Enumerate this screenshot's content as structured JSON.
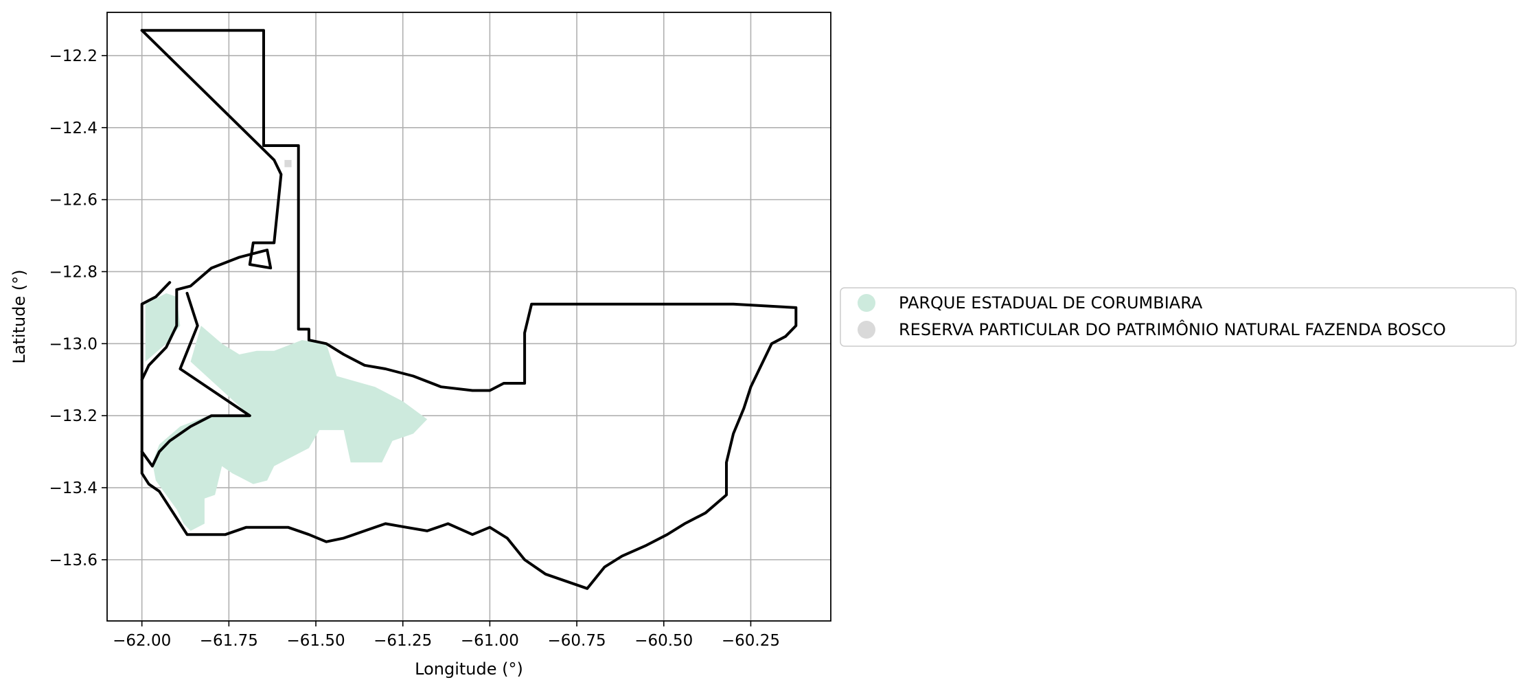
{
  "chart_data": {
    "type": "map",
    "xlabel": "Longitude (°)",
    "ylabel": "Latitude (°)",
    "xlim": [
      -62.1,
      -60.02
    ],
    "ylim": [
      -13.77,
      -12.08
    ],
    "xticks": [
      -62.0,
      -61.75,
      -61.5,
      -61.25,
      -61.0,
      -60.75,
      -60.5,
      -60.25
    ],
    "xtick_labels": [
      "−62.00",
      "−61.75",
      "−61.50",
      "−61.25",
      "−61.00",
      "−60.75",
      "−60.50",
      "−60.25"
    ],
    "yticks": [
      -12.2,
      -12.4,
      -12.6,
      -12.8,
      -13.0,
      -13.2,
      -13.4,
      -13.6
    ],
    "ytick_labels": [
      "−12.2",
      "−12.4",
      "−12.6",
      "−12.8",
      "−13.0",
      "−13.2",
      "−13.4",
      "−13.6"
    ],
    "grid": true,
    "legend_position": "outside-right",
    "legend": [
      {
        "label": "PARQUE ESTADUAL DE CORUMBIARA",
        "color": "#cdeadd"
      },
      {
        "label": "RESERVA PARTICULAR DO PATRIMÔNIO NATURAL FAZENDA BOSCO",
        "color": "#d9d9d9"
      }
    ],
    "areas": [
      {
        "name": "PARQUE ESTADUAL DE CORUMBIARA",
        "color": "#cdeadd",
        "polygons": [
          [
            [
              -61.99,
              -12.89
            ],
            [
              -61.93,
              -12.86
            ],
            [
              -61.9,
              -12.87
            ],
            [
              -61.89,
              -12.95
            ],
            [
              -61.93,
              -13.0
            ],
            [
              -61.99,
              -13.05
            ]
          ],
          [
            [
              -61.83,
              -12.95
            ],
            [
              -61.77,
              -13.0
            ],
            [
              -61.72,
              -13.03
            ],
            [
              -61.67,
              -13.02
            ],
            [
              -61.62,
              -13.02
            ],
            [
              -61.54,
              -12.99
            ],
            [
              -61.47,
              -13.0
            ],
            [
              -61.44,
              -13.09
            ],
            [
              -61.33,
              -13.12
            ],
            [
              -61.25,
              -13.16
            ],
            [
              -61.18,
              -13.21
            ],
            [
              -61.22,
              -13.25
            ],
            [
              -61.28,
              -13.27
            ],
            [
              -61.31,
              -13.33
            ],
            [
              -61.4,
              -13.33
            ],
            [
              -61.42,
              -13.24
            ],
            [
              -61.49,
              -13.24
            ],
            [
              -61.52,
              -13.29
            ],
            [
              -61.58,
              -13.32
            ],
            [
              -61.62,
              -13.34
            ],
            [
              -61.64,
              -13.38
            ],
            [
              -61.68,
              -13.39
            ],
            [
              -61.72,
              -13.37
            ],
            [
              -61.74,
              -13.36
            ],
            [
              -61.77,
              -13.34
            ],
            [
              -61.79,
              -13.42
            ],
            [
              -61.82,
              -13.43
            ],
            [
              -61.82,
              -13.5
            ],
            [
              -61.86,
              -13.52
            ],
            [
              -61.88,
              -13.5
            ],
            [
              -61.9,
              -13.46
            ],
            [
              -61.93,
              -13.42
            ],
            [
              -61.96,
              -13.38
            ],
            [
              -61.97,
              -13.33
            ],
            [
              -61.95,
              -13.28
            ],
            [
              -61.89,
              -13.23
            ],
            [
              -61.81,
              -13.2
            ],
            [
              -61.69,
              -13.2
            ],
            [
              -61.86,
              -13.05
            ]
          ]
        ]
      },
      {
        "name": "RESERVA PARTICULAR DO PATRIMÔNIO NATURAL FAZENDA BOSCO",
        "color": "#d9d9d9",
        "polygons": [
          [
            [
              -61.59,
              -12.49
            ],
            [
              -61.57,
              -12.49
            ],
            [
              -61.57,
              -12.51
            ],
            [
              -61.59,
              -12.51
            ]
          ]
        ]
      }
    ],
    "boundaries": [
      [
        [
          -62.0,
          -12.13
        ],
        [
          -61.65,
          -12.13
        ],
        [
          -61.65,
          -12.45
        ],
        [
          -61.55,
          -12.45
        ],
        [
          -61.55,
          -12.96
        ],
        [
          -61.52,
          -12.96
        ],
        [
          -61.52,
          -12.99
        ],
        [
          -61.47,
          -13.0
        ],
        [
          -61.42,
          -13.03
        ],
        [
          -61.36,
          -13.06
        ],
        [
          -61.3,
          -13.07
        ],
        [
          -61.22,
          -13.09
        ],
        [
          -61.14,
          -13.12
        ],
        [
          -61.05,
          -13.13
        ],
        [
          -61.0,
          -13.13
        ],
        [
          -60.96,
          -13.11
        ],
        [
          -60.9,
          -13.11
        ],
        [
          -60.9,
          -12.97
        ],
        [
          -60.88,
          -12.89
        ],
        [
          -60.7,
          -12.89
        ],
        [
          -60.5,
          -12.89
        ],
        [
          -60.3,
          -12.89
        ],
        [
          -60.12,
          -12.9
        ],
        [
          -60.12,
          -12.95
        ],
        [
          -60.15,
          -12.98
        ],
        [
          -60.19,
          -13.0
        ],
        [
          -60.22,
          -13.06
        ],
        [
          -60.25,
          -13.12
        ],
        [
          -60.27,
          -13.18
        ],
        [
          -60.3,
          -13.25
        ],
        [
          -60.32,
          -13.33
        ],
        [
          -60.32,
          -13.42
        ],
        [
          -60.38,
          -13.47
        ],
        [
          -60.44,
          -13.5
        ],
        [
          -60.49,
          -13.53
        ],
        [
          -60.55,
          -13.56
        ],
        [
          -60.62,
          -13.59
        ],
        [
          -60.67,
          -13.62
        ],
        [
          -60.72,
          -13.68
        ],
        [
          -60.78,
          -13.66
        ],
        [
          -60.84,
          -13.64
        ],
        [
          -60.9,
          -13.6
        ],
        [
          -60.95,
          -13.54
        ],
        [
          -61.0,
          -13.51
        ],
        [
          -61.05,
          -13.53
        ],
        [
          -61.12,
          -13.5
        ],
        [
          -61.18,
          -13.52
        ],
        [
          -61.24,
          -13.51
        ],
        [
          -61.3,
          -13.5
        ],
        [
          -61.36,
          -13.52
        ],
        [
          -61.42,
          -13.54
        ],
        [
          -61.47,
          -13.55
        ],
        [
          -61.52,
          -13.53
        ],
        [
          -61.58,
          -13.51
        ],
        [
          -61.64,
          -13.51
        ],
        [
          -61.7,
          -13.51
        ],
        [
          -61.76,
          -13.53
        ],
        [
          -61.82,
          -13.53
        ],
        [
          -61.87,
          -13.53
        ],
        [
          -61.91,
          -13.47
        ],
        [
          -61.95,
          -13.41
        ],
        [
          -61.98,
          -13.39
        ],
        [
          -62.0,
          -13.36
        ],
        [
          -62.0,
          -12.89
        ],
        [
          -61.96,
          -12.87
        ],
        [
          -61.92,
          -12.83
        ]
      ],
      [
        [
          -62.0,
          -12.13
        ],
        [
          -61.62,
          -12.49
        ],
        [
          -61.6,
          -12.53
        ],
        [
          -61.62,
          -12.72
        ],
        [
          -61.68,
          -12.72
        ],
        [
          -61.69,
          -12.78
        ],
        [
          -61.63,
          -12.79
        ],
        [
          -61.64,
          -12.74
        ],
        [
          -61.72,
          -12.76
        ],
        [
          -61.8,
          -12.79
        ],
        [
          -61.86,
          -12.84
        ],
        [
          -61.9,
          -12.85
        ],
        [
          -61.9,
          -12.95
        ],
        [
          -61.93,
          -13.01
        ],
        [
          -61.98,
          -13.06
        ],
        [
          -62.0,
          -13.1
        ]
      ],
      [
        [
          -61.87,
          -12.86
        ],
        [
          -61.84,
          -12.95
        ],
        [
          -61.89,
          -13.07
        ],
        [
          -61.69,
          -13.2
        ],
        [
          -61.8,
          -13.2
        ],
        [
          -61.86,
          -13.23
        ],
        [
          -61.92,
          -13.27
        ],
        [
          -61.95,
          -13.3
        ],
        [
          -61.97,
          -13.34
        ],
        [
          -62.0,
          -13.3
        ]
      ]
    ]
  }
}
